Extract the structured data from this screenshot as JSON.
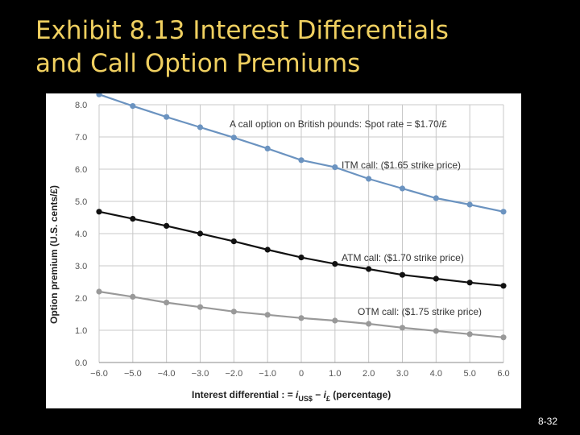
{
  "slide": {
    "title_line1": "Exhibit 8.13  Interest Differentials",
    "title_line2": "and Call Option Premiums",
    "page_number": "8-32"
  },
  "colors": {
    "background": "#000000",
    "title": "#f0d060",
    "itm": "#6b93c0",
    "atm": "#111111",
    "otm": "#999999",
    "grid": "#c8c8c8"
  },
  "chart_data": {
    "type": "line",
    "title": "A call option on British pounds: Spot rate = $1.70/£",
    "ylabel": "Option premium (U.S. cents/£)",
    "xlabel": "Interest differential :  =  i US$ − i £ (percentage)",
    "xlabel_parts": {
      "prefix": "Interest differential :  =  ",
      "i1": "i",
      "sub1": "US$",
      "dash": " − ",
      "i2": "i",
      "sub2": "£",
      "suffix": " (percentage)"
    },
    "x": [
      -6,
      -5,
      -4,
      -3,
      -2,
      -1,
      0,
      1,
      2,
      3,
      4,
      5,
      6
    ],
    "x_tick_labels": [
      "−6.0",
      "−5.0",
      "−4.0",
      "−3.0",
      "−2.0",
      "−1.0",
      "0",
      "1.0",
      "2.0",
      "3.0",
      "4.0",
      "5.0",
      "6.0"
    ],
    "y_ticks": [
      0,
      1,
      2,
      3,
      4,
      5,
      6,
      7,
      8
    ],
    "y_tick_labels": [
      "0.0",
      "1.0",
      "2.0",
      "3.0",
      "4.0",
      "5.0",
      "6.0",
      "7.0",
      "8.0"
    ],
    "xlim": [
      -6,
      6
    ],
    "ylim": [
      0,
      8
    ],
    "grid": true,
    "series": [
      {
        "name": "ITM call: ($1.65 strike price)",
        "key": "itm",
        "color": "#6b93c0",
        "values": [
          8.32,
          7.96,
          7.62,
          7.3,
          6.98,
          6.64,
          6.28,
          6.06,
          5.7,
          5.4,
          5.1,
          4.9,
          4.68
        ]
      },
      {
        "name": "ATM call: ($1.70 strike price)",
        "key": "atm",
        "color": "#111111",
        "values": [
          4.68,
          4.46,
          4.24,
          4.0,
          3.76,
          3.5,
          3.26,
          3.06,
          2.9,
          2.72,
          2.6,
          2.48,
          2.38
        ]
      },
      {
        "name": "OTM call: ($1.75 strike price)",
        "key": "otm",
        "color": "#999999",
        "values": [
          2.2,
          2.04,
          1.86,
          1.72,
          1.58,
          1.48,
          1.38,
          1.3,
          1.2,
          1.08,
          0.98,
          0.88,
          0.78
        ]
      }
    ]
  }
}
